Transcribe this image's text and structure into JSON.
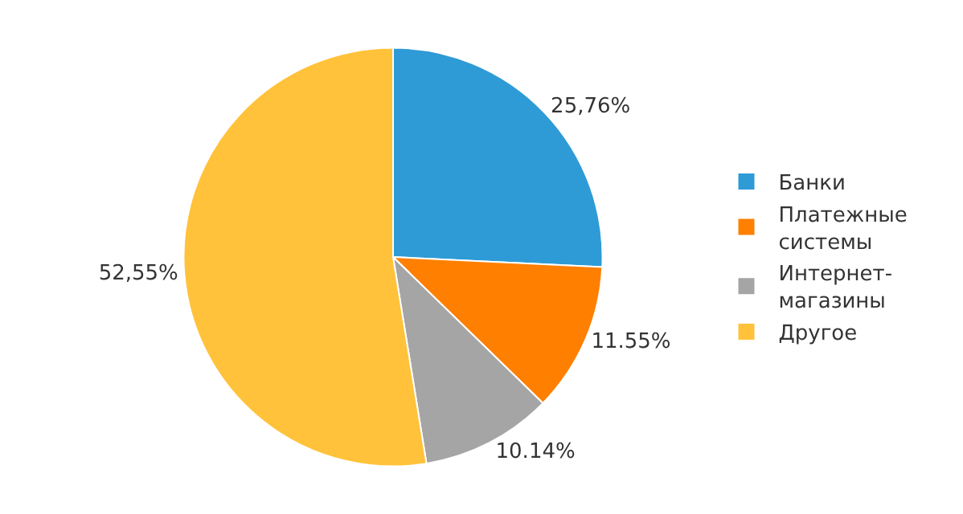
{
  "chart_data": {
    "type": "pie",
    "categories": [
      "Банки",
      "Платежные\nсистемы",
      "Интернет-\nмагазины",
      "Другое"
    ],
    "values": [
      25.76,
      11.55,
      10.14,
      52.55
    ],
    "value_labels": [
      "25,76%",
      "11.55%",
      "10.14%",
      "52,55%"
    ],
    "colors": [
      "#2e9bd6",
      "#ff7f00",
      "#a5a5a5",
      "#ffc23a"
    ],
    "legend": "right"
  }
}
